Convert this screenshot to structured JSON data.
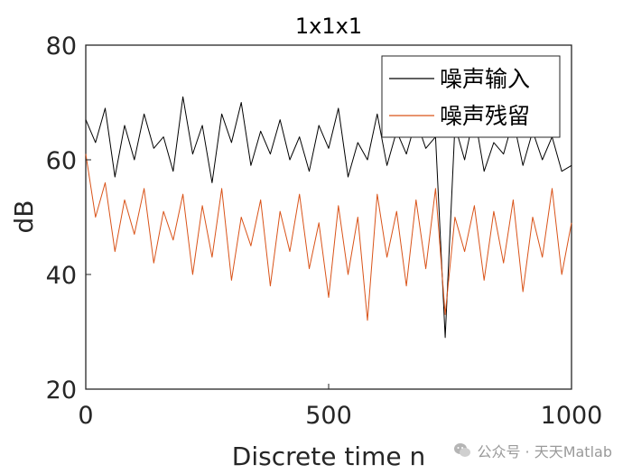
{
  "chart_data": {
    "type": "line",
    "title": "1x1x1",
    "xlabel": "Discrete time n",
    "ylabel": "dB",
    "xlim": [
      0,
      1000
    ],
    "ylim": [
      20,
      80
    ],
    "xticks": [
      0,
      500,
      1000
    ],
    "yticks": [
      20,
      40,
      60,
      80
    ],
    "legend_position": "top-right",
    "grid": false,
    "series": [
      {
        "name": "噪声输入",
        "color": "#000000",
        "x_step": 20,
        "values": [
          67,
          63,
          69,
          57,
          66,
          60,
          68,
          62,
          64,
          58,
          71,
          61,
          66,
          56,
          68,
          63,
          70,
          59,
          65,
          61,
          67,
          60,
          64,
          58,
          66,
          62,
          69,
          57,
          63,
          60,
          68,
          59,
          65,
          61,
          67,
          62,
          64,
          29,
          66,
          60,
          68,
          58,
          63,
          61,
          67,
          59,
          65,
          60,
          64,
          58,
          59
        ]
      },
      {
        "name": "噪声残留",
        "color": "#D95319",
        "x_step": 20,
        "values": [
          61,
          50,
          56,
          44,
          53,
          47,
          55,
          42,
          51,
          46,
          54,
          40,
          52,
          43,
          55,
          39,
          50,
          45,
          53,
          38,
          51,
          44,
          54,
          41,
          49,
          36,
          52,
          40,
          50,
          32,
          54,
          43,
          51,
          38,
          53,
          41,
          55,
          33,
          50,
          44,
          52,
          39,
          51,
          42,
          53,
          37,
          50,
          43,
          55,
          40,
          49
        ]
      }
    ]
  },
  "watermark": {
    "text": "公众号 · 天天Matlab",
    "icon": "wechat-icon"
  }
}
